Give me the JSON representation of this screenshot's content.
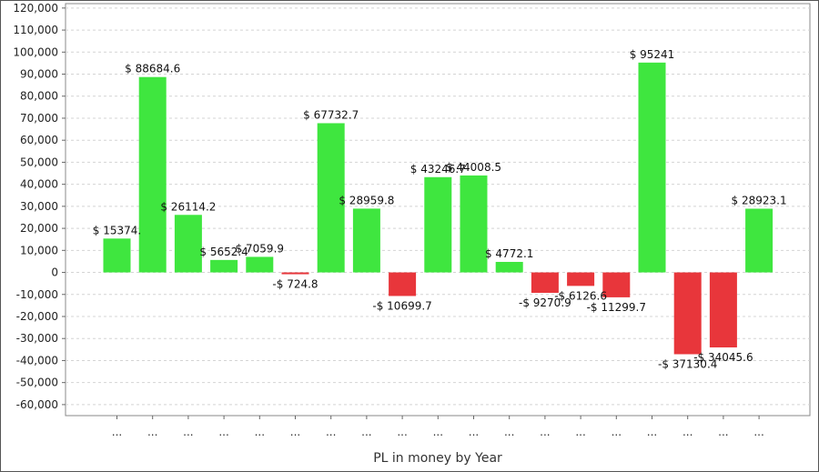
{
  "chart_data": {
    "type": "bar",
    "title": "",
    "xlabel": "PL in money by Year",
    "ylabel": "",
    "ylim": [
      -65000,
      122000
    ],
    "yticks": [
      120000,
      110000,
      100000,
      90000,
      80000,
      70000,
      60000,
      50000,
      40000,
      30000,
      20000,
      10000,
      0,
      -10000,
      -20000,
      -30000,
      -40000,
      -50000,
      -60000
    ],
    "grid": true,
    "legend": "none",
    "colors": {
      "positive": "#3fe63f",
      "negative": "#e8363b"
    },
    "categories": [
      "...",
      "...",
      "...",
      "...",
      "...",
      "...",
      "...",
      "...",
      "...",
      "...",
      "...",
      "...",
      "...",
      "...",
      "...",
      "...",
      "...",
      "...",
      "..."
    ],
    "values": [
      15374,
      88684.6,
      26114.2,
      5652.4,
      7059.9,
      -724.8,
      67732.7,
      28959.8,
      -10699.7,
      43246.7,
      44008.5,
      4772.1,
      -9270.9,
      -6126.6,
      -11299.7,
      95241,
      -37130.4,
      -34045.6,
      28923.1
    ],
    "data_labels": [
      "$ 15374.",
      "$ 88684.6",
      "$ 26114.2",
      "$ 5652.4",
      "$ 7059.9",
      "-$ 724.8",
      "$ 67732.7",
      "$ 28959.8",
      "-$ 10699.7",
      "$ 43246.7",
      "$ 44008.5",
      "$ 4772.1",
      "-$ 9270.9",
      "-$ 6126.6",
      "-$ 11299.7",
      "$ 95241",
      "-$ 37130.4",
      "-$ 34045.6",
      "$ 28923.1"
    ]
  }
}
